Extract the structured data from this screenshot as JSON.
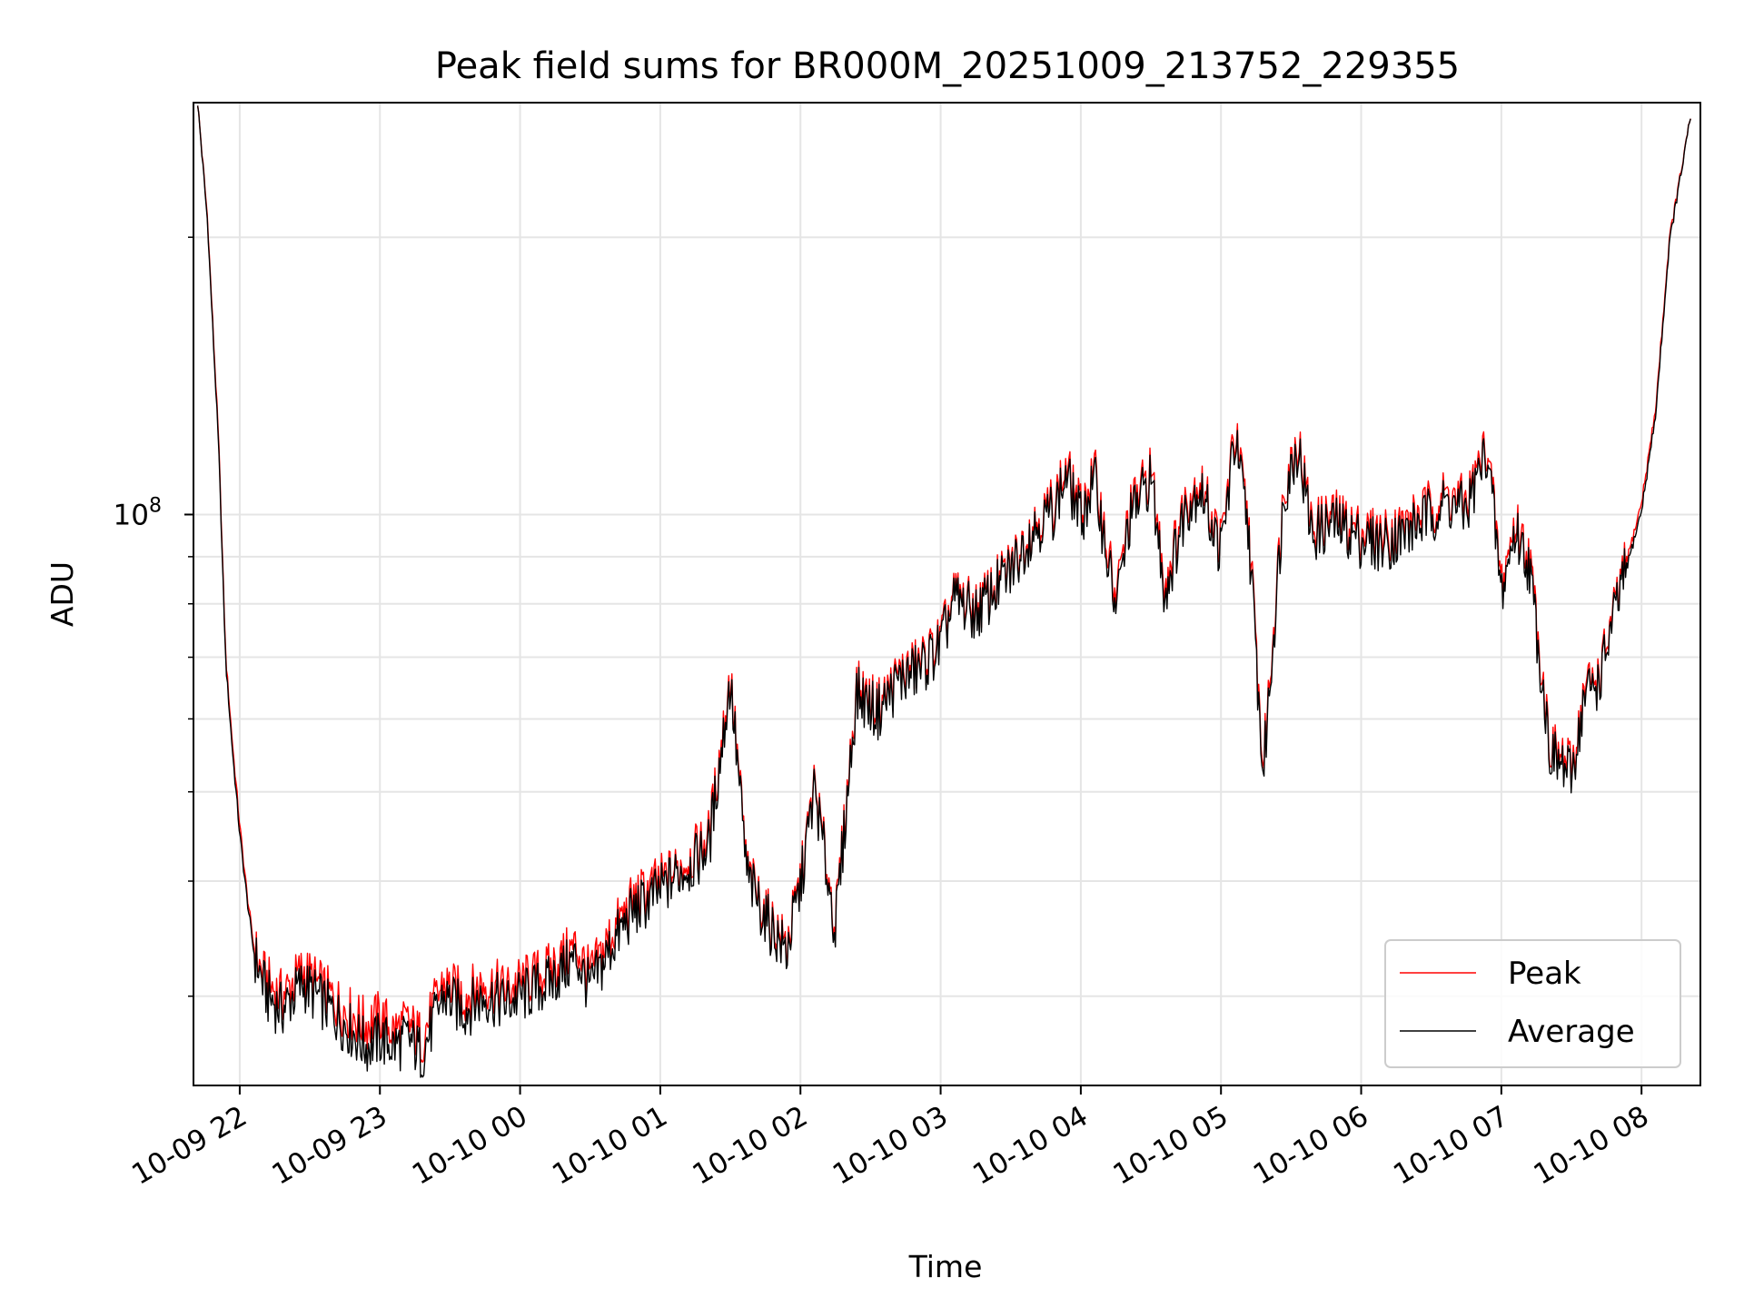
{
  "chart_data": {
    "type": "line",
    "title": "Peak field sums for BR000M_20251009_213752_229355",
    "xlabel": "Time",
    "ylabel": "ADU",
    "y_scale": "log",
    "xlim_hours_from_2025_10_09_22_00": [
      -0.33,
      10.42
    ],
    "ylim": [
      24000000,
      280000000
    ],
    "grid": true,
    "x_tick_labels": [
      "10-09 22",
      "10-09 23",
      "10-10 00",
      "10-10 01",
      "10-10 02",
      "10-10 03",
      "10-10 04",
      "10-10 05",
      "10-10 06",
      "10-10 07",
      "10-10 08"
    ],
    "x_tick_hours": [
      0,
      1,
      2,
      3,
      4,
      5,
      6,
      7,
      8,
      9,
      10
    ],
    "y_major_tick_label": "10",
    "y_major_tick_exponent": "8",
    "y_major_tick_value": 100000000,
    "legend_position": "lower-right",
    "colors": {
      "peak": "#ff0000",
      "average": "#000000",
      "grid": "#e5e5e5"
    },
    "series": [
      {
        "name": "Peak",
        "x_hours": [
          -0.3,
          -0.23,
          -0.2,
          -0.15,
          -0.1,
          -0.05,
          0.0,
          0.05,
          0.1,
          0.15,
          0.2,
          0.3,
          0.45,
          0.6,
          0.75,
          0.9,
          1.0,
          1.1,
          1.2,
          1.3,
          1.45,
          1.6,
          1.75,
          1.9,
          2.0,
          2.2,
          2.4,
          2.5,
          2.65,
          2.8,
          3.0,
          3.1,
          3.25,
          3.35,
          3.5,
          3.62,
          3.75,
          3.9,
          4.0,
          4.1,
          4.25,
          4.4,
          4.55,
          4.7,
          4.85,
          5.0,
          5.1,
          5.25,
          5.5,
          5.65,
          5.8,
          5.9,
          6.0,
          6.1,
          6.25,
          6.35,
          6.5,
          6.6,
          6.75,
          6.85,
          7.0,
          7.1,
          7.2,
          7.3,
          7.45,
          7.55,
          7.65,
          7.8,
          8.0,
          8.15,
          8.3,
          8.45,
          8.6,
          8.75,
          8.9,
          9.0,
          9.1,
          9.2,
          9.35,
          9.5,
          9.6,
          9.7,
          9.8,
          10.0,
          10.1,
          10.2,
          10.35
        ],
        "y": [
          280000000,
          210000000,
          170000000,
          120000000,
          70000000,
          56000000,
          46000000,
          39000000,
          34000000,
          32000000,
          31000000,
          30000000,
          32000000,
          30500000,
          29000000,
          28000000,
          28500000,
          27500000,
          28000000,
          27000000,
          31000000,
          30000000,
          31000000,
          30500000,
          31000000,
          32000000,
          34000000,
          31500000,
          35000000,
          38000000,
          40000000,
          41000000,
          43000000,
          45000000,
          67000000,
          41000000,
          37000000,
          34000000,
          40000000,
          51000000,
          36000000,
          65000000,
          62000000,
          67000000,
          69000000,
          73000000,
          82000000,
          79000000,
          88000000,
          97000000,
          103000000,
          112000000,
          101000000,
          111000000,
          81000000,
          101000000,
          112000000,
          84000000,
          104000000,
          109000000,
          93000000,
          123000000,
          97000000,
          53000000,
          108000000,
          121000000,
          97000000,
          100000000,
          96000000,
          95000000,
          97000000,
          101000000,
          105000000,
          103000000,
          120000000,
          84000000,
          98000000,
          90000000,
          56000000,
          53000000,
          65000000,
          67000000,
          78000000,
          103000000,
          130000000,
          200000000,
          270000000
        ]
      },
      {
        "name": "Average",
        "x_hours": [
          -0.3,
          -0.23,
          -0.2,
          -0.15,
          -0.1,
          -0.05,
          0.0,
          0.05,
          0.1,
          0.15,
          0.2,
          0.3,
          0.45,
          0.6,
          0.75,
          0.9,
          1.0,
          1.1,
          1.2,
          1.3,
          1.45,
          1.6,
          1.75,
          1.9,
          2.0,
          2.2,
          2.4,
          2.5,
          2.65,
          2.8,
          3.0,
          3.1,
          3.25,
          3.35,
          3.5,
          3.62,
          3.75,
          3.9,
          4.0,
          4.1,
          4.25,
          4.4,
          4.55,
          4.7,
          4.85,
          5.0,
          5.1,
          5.25,
          5.5,
          5.65,
          5.8,
          5.9,
          6.0,
          6.1,
          6.25,
          6.35,
          6.5,
          6.6,
          6.75,
          6.85,
          7.0,
          7.1,
          7.2,
          7.3,
          7.45,
          7.55,
          7.65,
          7.8,
          8.0,
          8.15,
          8.3,
          8.45,
          8.6,
          8.75,
          8.9,
          9.0,
          9.1,
          9.2,
          9.35,
          9.5,
          9.6,
          9.7,
          9.8,
          10.0,
          10.1,
          10.2,
          10.35
        ],
        "y": [
          280000000,
          208000000,
          168000000,
          118000000,
          69000000,
          55000000,
          45000000,
          38500000,
          33500000,
          31500000,
          30000000,
          29000000,
          31000000,
          29500000,
          28000000,
          26500000,
          27000000,
          26500000,
          27000000,
          26000000,
          30000000,
          29000000,
          30000000,
          29500000,
          30000000,
          31000000,
          33000000,
          30500000,
          34000000,
          37000000,
          39000000,
          40500000,
          42000000,
          44000000,
          66000000,
          40500000,
          36500000,
          33500000,
          39500000,
          50500000,
          35500000,
          64000000,
          61000000,
          66000000,
          68000000,
          72000000,
          81000000,
          78000000,
          87000000,
          96000000,
          101000000,
          110000000,
          99000000,
          109000000,
          79000000,
          99000000,
          110000000,
          82000000,
          102000000,
          107000000,
          91000000,
          121000000,
          95000000,
          52000000,
          106000000,
          119000000,
          95000000,
          98000000,
          94000000,
          93000000,
          95000000,
          99000000,
          103000000,
          101000000,
          118000000,
          82000000,
          96000000,
          88000000,
          55000000,
          52000000,
          64000000,
          66000000,
          77000000,
          101000000,
          128000000,
          198000000,
          270000000
        ]
      }
    ]
  }
}
